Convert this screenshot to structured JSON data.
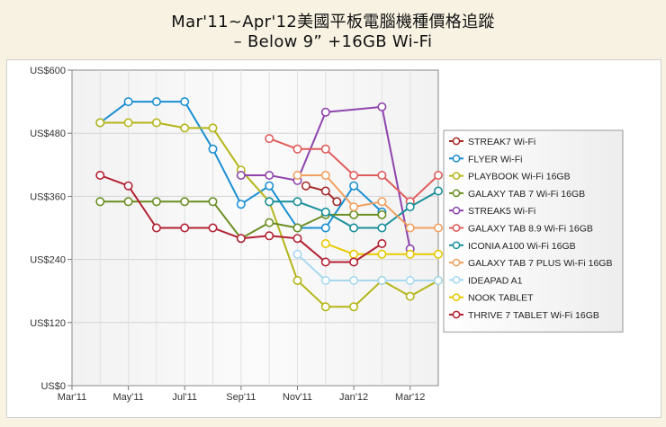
{
  "header": {
    "title_line1": "Mar'11~Apr'12美國平板電腦機種價格追蹤",
    "title_line2": "– Below 9” +16GB Wi-Fi"
  },
  "chart_data": {
    "type": "line",
    "title": "Mar'11~Apr'12美國平板電腦機種價格追蹤 – Below 9” +16GB Wi-Fi",
    "x_tick_labels": [
      "Mar'11",
      "May'11",
      "Jul'11",
      "Sep'11",
      "Nov'11",
      "Jan'12",
      "Mar'12"
    ],
    "y_tick_labels": [
      "US$0",
      "US$120",
      "US$240",
      "US$360",
      "US$480",
      "US$600"
    ],
    "ylim": [
      0,
      600
    ],
    "grid": true,
    "legend_position": "right",
    "series": [
      {
        "name": "STREAK7 Wi-Fi",
        "color": "#a52a2a",
        "points": [
          [
            12.3,
            380
          ],
          [
            13,
            370
          ],
          [
            13.4,
            350
          ]
        ]
      },
      {
        "name": "FLYER Wi-Fi",
        "color": "#1a8fd1",
        "points": [
          [
            5,
            500
          ],
          [
            6,
            540
          ],
          [
            7,
            540
          ],
          [
            8,
            540
          ],
          [
            9,
            450
          ],
          [
            10,
            345
          ],
          [
            11,
            380
          ],
          [
            12,
            300
          ],
          [
            13,
            300
          ],
          [
            14,
            380
          ],
          [
            15,
            330
          ]
        ]
      },
      {
        "name": "PLAYBOOK Wi-Fi 16GB",
        "color": "#b5b51a",
        "points": [
          [
            5,
            500
          ],
          [
            6,
            500
          ],
          [
            7,
            500
          ],
          [
            8,
            490
          ],
          [
            9,
            490
          ],
          [
            10,
            410
          ],
          [
            11,
            350
          ],
          [
            12,
            200
          ],
          [
            13,
            150
          ],
          [
            14,
            150
          ],
          [
            15,
            200
          ],
          [
            16,
            170
          ],
          [
            17,
            200
          ]
        ]
      },
      {
        "name": "GALAXY TAB 7 Wi-Fi 16GB",
        "color": "#6b8e23",
        "points": [
          [
            5,
            350
          ],
          [
            6,
            350
          ],
          [
            7,
            350
          ],
          [
            8,
            350
          ],
          [
            9,
            350
          ],
          [
            10,
            280
          ],
          [
            11,
            310
          ],
          [
            12,
            300
          ],
          [
            13,
            325
          ],
          [
            14,
            325
          ],
          [
            15,
            325
          ]
        ]
      },
      {
        "name": "STREAK5 Wi-Fi",
        "color": "#8e44ad",
        "points": [
          [
            10,
            400
          ],
          [
            11,
            400
          ],
          [
            12,
            390
          ],
          [
            13,
            520
          ],
          [
            15,
            530
          ],
          [
            16,
            260
          ]
        ]
      },
      {
        "name": "GALAXY TAB 8.9 Wi-Fi 16GB",
        "color": "#e05c5c",
        "points": [
          [
            11,
            470
          ],
          [
            12,
            450
          ],
          [
            13,
            450
          ],
          [
            14,
            400
          ],
          [
            15,
            400
          ],
          [
            16,
            350
          ],
          [
            17,
            400
          ]
        ]
      },
      {
        "name": "ICONIA A100 Wi-Fi 16GB",
        "color": "#1a8f9a",
        "points": [
          [
            11,
            350
          ],
          [
            12,
            350
          ],
          [
            13,
            330
          ],
          [
            14,
            300
          ],
          [
            15,
            300
          ],
          [
            16,
            340
          ],
          [
            17,
            370
          ]
        ]
      },
      {
        "name": "GALAXY TAB 7 PLUS Wi-Fi 16GB",
        "color": "#f0a060",
        "points": [
          [
            12,
            400
          ],
          [
            13,
            400
          ],
          [
            14,
            340
          ],
          [
            15,
            350
          ],
          [
            16,
            300
          ],
          [
            17,
            300
          ]
        ]
      },
      {
        "name": "IDEAPAD A1",
        "color": "#a8d8f0",
        "points": [
          [
            12,
            250
          ],
          [
            13,
            200
          ],
          [
            14,
            200
          ],
          [
            15,
            200
          ],
          [
            16,
            200
          ],
          [
            17,
            200
          ]
        ]
      },
      {
        "name": "NOOK TABLET",
        "color": "#e8c800",
        "points": [
          [
            13,
            270
          ],
          [
            14,
            250
          ],
          [
            15,
            250
          ],
          [
            16,
            250
          ],
          [
            17,
            250
          ]
        ]
      },
      {
        "name": "THRIVE 7 TABLET Wi-Fi 16GB",
        "color": "#b22234",
        "points": [
          [
            5,
            400
          ],
          [
            6,
            380
          ],
          [
            7,
            300
          ],
          [
            8,
            300
          ],
          [
            9,
            300
          ],
          [
            10,
            280
          ],
          [
            11,
            285
          ],
          [
            12,
            280
          ],
          [
            13,
            235
          ],
          [
            14,
            235
          ],
          [
            15,
            270
          ]
        ]
      }
    ],
    "x_range": [
      4,
      17
    ]
  }
}
